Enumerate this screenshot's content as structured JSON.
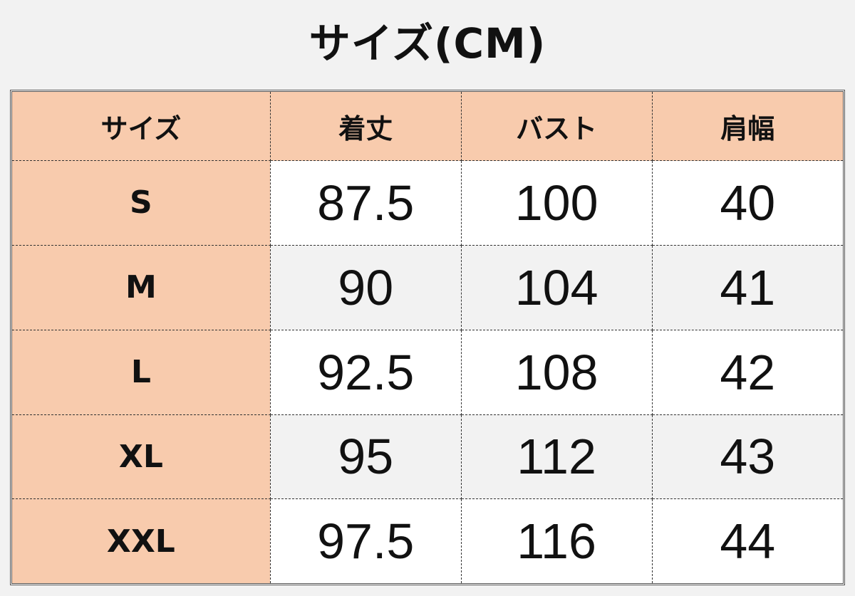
{
  "title": "サイズ(CM)",
  "colors": {
    "header_bg": "#f8cbad",
    "alt_row_bg": "#f2f2f2",
    "row_bg": "#ffffff"
  },
  "table": {
    "headers": [
      "サイズ",
      "着丈",
      "バスト",
      "肩幅"
    ],
    "rows": [
      [
        "S",
        "87.5",
        "100",
        "40"
      ],
      [
        "M",
        "90",
        "104",
        "41"
      ],
      [
        "L",
        "92.5",
        "108",
        "42"
      ],
      [
        "XL",
        "95",
        "112",
        "43"
      ],
      [
        "XXL",
        "97.5",
        "116",
        "44"
      ]
    ]
  }
}
